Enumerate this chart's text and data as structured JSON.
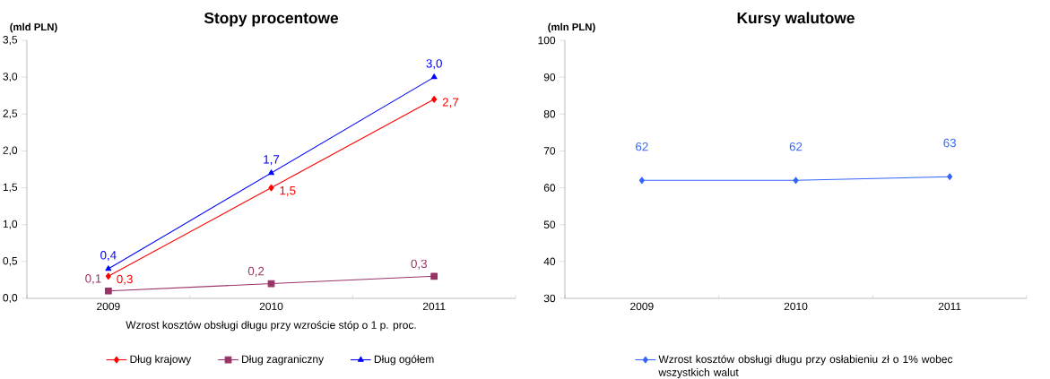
{
  "chart_data": [
    {
      "type": "line",
      "title": "Stopy procentowe",
      "ylabel": "(mld PLN)",
      "xlabel": "Wzrost kosztów obsługi długu przy wzroście stóp o 1 p. proc.",
      "categories": [
        "2009",
        "2010",
        "2011"
      ],
      "ylim": [
        0,
        3.5
      ],
      "yticks": [
        {
          "value": 0,
          "label": "0,0"
        },
        {
          "value": 0.5,
          "label": "0,5"
        },
        {
          "value": 1,
          "label": "1,0"
        },
        {
          "value": 1.5,
          "label": "1,5"
        },
        {
          "value": 2,
          "label": "2,0"
        },
        {
          "value": 2.5,
          "label": "2,5"
        },
        {
          "value": 3,
          "label": "3,0"
        },
        {
          "value": 3.5,
          "label": "3,5"
        }
      ],
      "legend": "bottom",
      "series": [
        {
          "name": "Dług krajowy",
          "color": "#ff0000",
          "marker": "diamond",
          "values": [
            0.3,
            1.5,
            2.7
          ],
          "value_labels": [
            "0,3",
            "1,5",
            "2,7"
          ]
        },
        {
          "name": "Dług zagraniczny",
          "color": "#993366",
          "marker": "square",
          "values": [
            0.1,
            0.2,
            0.3
          ],
          "value_labels": [
            "0,1",
            "0,2",
            "0,3"
          ]
        },
        {
          "name": "Dług ogółem",
          "color": "#0000ff",
          "marker": "triangle",
          "values": [
            0.4,
            1.7,
            3.0
          ],
          "value_labels": [
            "0,4",
            "1,7",
            "3,0"
          ]
        }
      ]
    },
    {
      "type": "line",
      "title": "Kursy walutowe",
      "ylabel": "(mln PLN)",
      "categories": [
        "2009",
        "2010",
        "2011"
      ],
      "ylim": [
        30,
        100
      ],
      "yticks": [
        30,
        40,
        50,
        60,
        70,
        80,
        90,
        100
      ],
      "legend": "bottom",
      "data_labels": true,
      "marker": "diamond",
      "series": [
        {
          "name": "Wzrost kosztów obsługi długu przy osłabieniu zł o 1% wobec wszystkich walut",
          "color": "#3366ff",
          "values": [
            62,
            62,
            63
          ]
        }
      ]
    }
  ]
}
